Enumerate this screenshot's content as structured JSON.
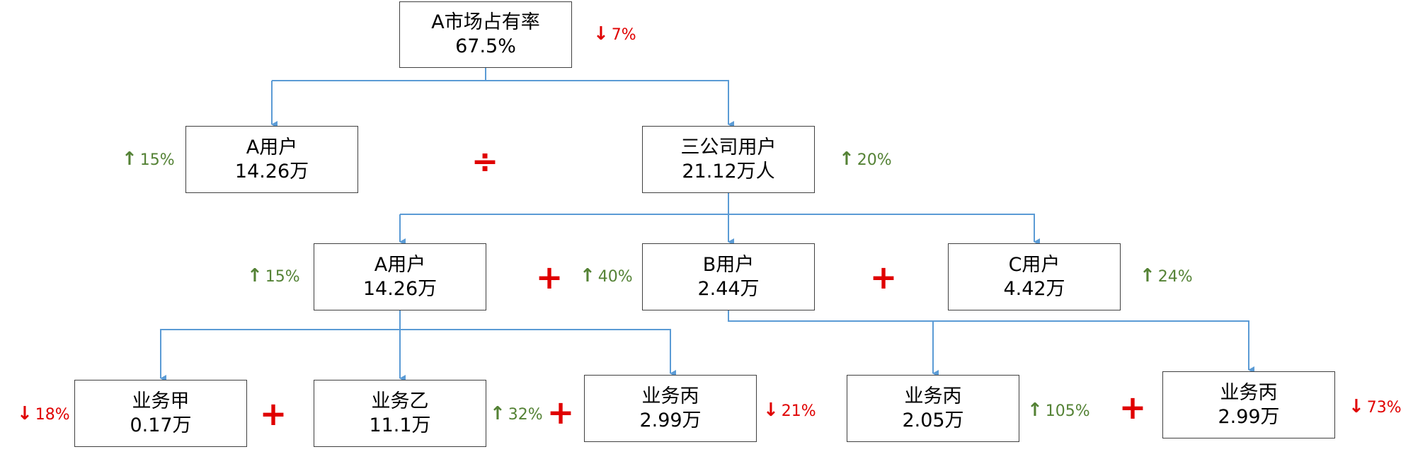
{
  "colors": {
    "up": "#548235",
    "down": "#e00000",
    "connector": "#5b9bd5",
    "border": "#404040"
  },
  "nodes": {
    "share": {
      "label": "A市场占有率",
      "value": "67.5%",
      "change": "7%",
      "direction": "down"
    },
    "a_user": {
      "label": "A用户",
      "value": "14.26万",
      "change": "15%",
      "direction": "up"
    },
    "total": {
      "label": "三公司用户",
      "value": "21.12万人",
      "change": "20%",
      "direction": "up"
    },
    "l2_a": {
      "label": "A用户",
      "value": "14.26万",
      "change": "15%",
      "direction": "up"
    },
    "l2_b": {
      "label": "B用户",
      "value": "2.44万",
      "change": "40%",
      "direction": "up"
    },
    "l2_c": {
      "label": "C用户",
      "value": "4.42万",
      "change": "24%",
      "direction": "up"
    },
    "biz1": {
      "label": "业务甲",
      "value": "0.17万",
      "change": "18%",
      "direction": "down"
    },
    "biz2": {
      "label": "业务乙",
      "value": "11.1万",
      "change": "32%",
      "direction": "up"
    },
    "biz3": {
      "label": "业务丙",
      "value": "2.99万",
      "change": "21%",
      "direction": "down"
    },
    "biz4": {
      "label": "业务丙",
      "value": "2.05万",
      "change": "105%",
      "direction": "up"
    },
    "biz5": {
      "label": "业务丙",
      "value": "2.99万",
      "change": "73%",
      "direction": "down"
    }
  },
  "operators": {
    "divide": "÷",
    "plus": "+"
  },
  "arrows": {
    "up": "↑",
    "down": "↓"
  }
}
